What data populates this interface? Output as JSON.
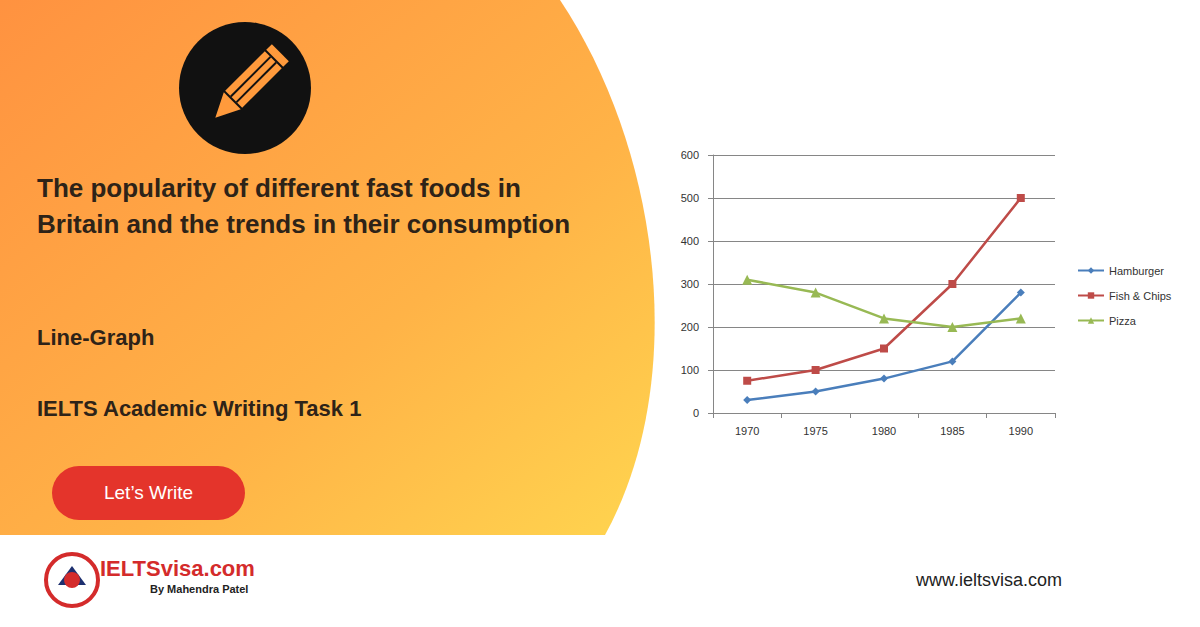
{
  "page": {
    "title": "The popularity of different fast foods in Britain and the trends in their consumption",
    "subtitle": "Line-Graph",
    "caption": "IELTS Academic Writing Task 1",
    "button": "Let’s Write",
    "logo": "IELTSvisa.com",
    "logo_byline": "By Mahendra Patel",
    "url": "www.ieltsvisa.com"
  },
  "chart_data": {
    "type": "line",
    "categories": [
      "1970",
      "1975",
      "1980",
      "1985",
      "1990"
    ],
    "series": [
      {
        "name": "Hamburger",
        "color": "#4a7ebb",
        "marker": "diamond",
        "line_style": "solid",
        "values": [
          30,
          50,
          80,
          120,
          280
        ]
      },
      {
        "name": "Fish & Chips",
        "color": "#be4b48",
        "marker": "square",
        "line_style": "solid",
        "values": [
          75,
          100,
          150,
          300,
          500
        ]
      },
      {
        "name": "Pizza",
        "color": "#98b954",
        "marker": "triangle",
        "line_style": "solid",
        "values": [
          310,
          280,
          220,
          200,
          220
        ]
      }
    ],
    "ylim": [
      0,
      600
    ],
    "yticks": [
      0,
      100,
      200,
      300,
      400,
      500,
      600
    ],
    "grid": true,
    "legend": "right"
  }
}
